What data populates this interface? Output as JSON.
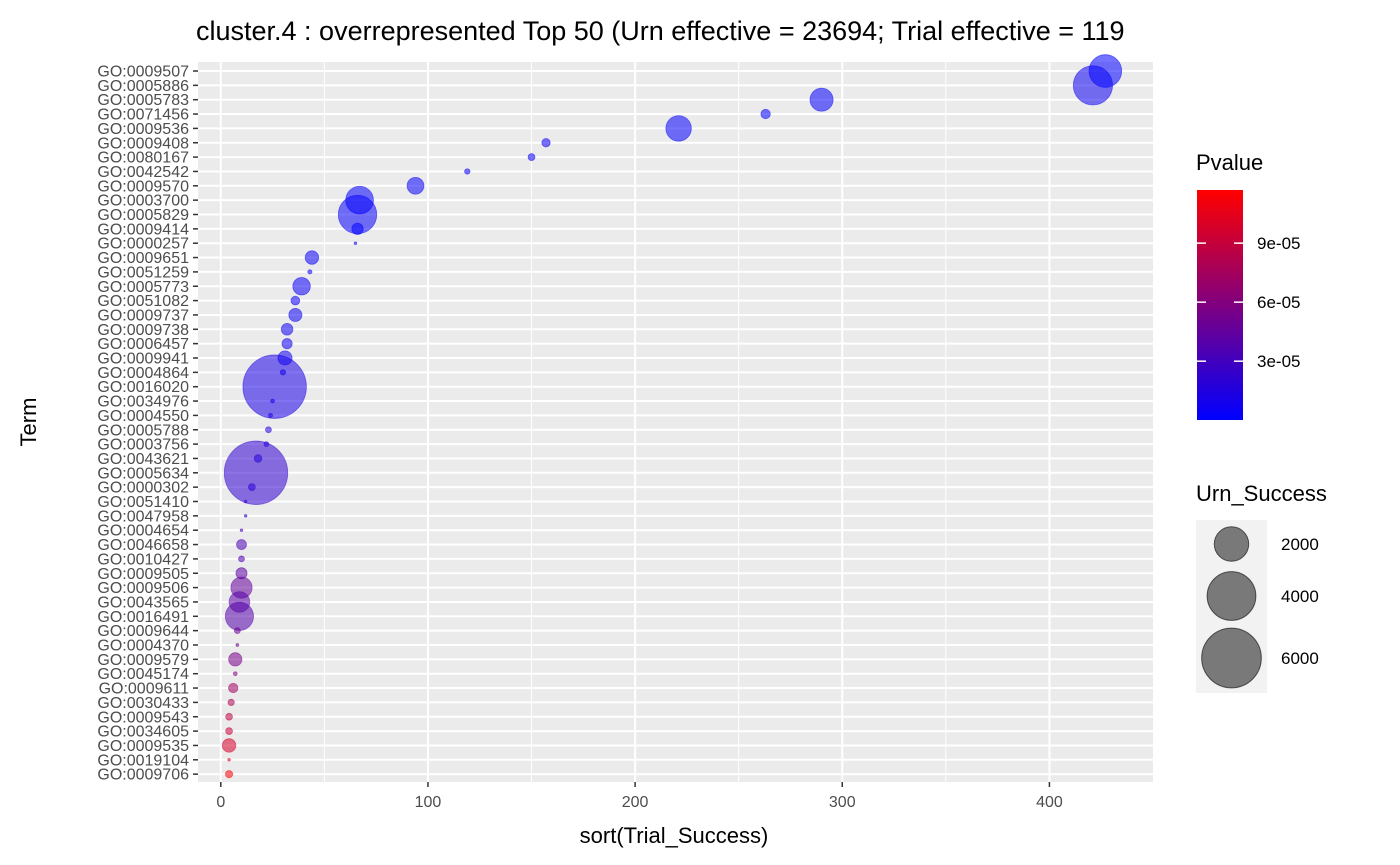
{
  "chart_data": {
    "type": "scatter",
    "title": "cluster.4 : overrepresented Top 50 (Urn effective = 23694; Trial effective = 119",
    "xlabel": "sort(Trial_Success)",
    "ylabel": "Term",
    "xlim": [
      -11,
      450
    ],
    "xticks": [
      0,
      100,
      200,
      300,
      400
    ],
    "xtick_labels": [
      "0",
      "100",
      "200",
      "300",
      "400"
    ],
    "grid": true,
    "colors": {
      "panel": "#ebebeb",
      "grid": "#ffffff",
      "low": "#0000ff",
      "high": "#ff0000",
      "point_alpha": 0.55
    },
    "terms": [
      "GO:0009507",
      "GO:0005886",
      "GO:0005783",
      "GO:0071456",
      "GO:0009536",
      "GO:0009408",
      "GO:0080167",
      "GO:0042542",
      "GO:0009570",
      "GO:0003700",
      "GO:0005829",
      "GO:0009414",
      "GO:0000257",
      "GO:0009651",
      "GO:0051259",
      "GO:0005773",
      "GO:0051082",
      "GO:0009737",
      "GO:0009738",
      "GO:0006457",
      "GO:0009941",
      "GO:0004864",
      "GO:0016020",
      "GO:0034976",
      "GO:0004550",
      "GO:0005788",
      "GO:0003756",
      "GO:0043621",
      "GO:0005634",
      "GO:0000302",
      "GO:0051410",
      "GO:0047958",
      "GO:0004654",
      "GO:0046658",
      "GO:0010427",
      "GO:0009505",
      "GO:0009506",
      "GO:0043565",
      "GO:0016491",
      "GO:0009644",
      "GO:0004370",
      "GO:0009579",
      "GO:0045174",
      "GO:0009611",
      "GO:0030433",
      "GO:0009543",
      "GO:0034605",
      "GO:0009535",
      "GO:0019104",
      "GO:0009706"
    ],
    "points": [
      {
        "term": "GO:0009507",
        "x": 427,
        "size": 1800,
        "pvalue": 1e-07
      },
      {
        "term": "GO:0005886",
        "x": 421,
        "size": 2600,
        "pvalue": 6e-06
      },
      {
        "term": "GO:0005783",
        "x": 290,
        "size": 900,
        "pvalue": 2e-06
      },
      {
        "term": "GO:0071456",
        "x": 263,
        "size": 150,
        "pvalue": 3e-06
      },
      {
        "term": "GO:0009536",
        "x": 221,
        "size": 1100,
        "pvalue": 2e-06
      },
      {
        "term": "GO:0009408",
        "x": 157,
        "size": 120,
        "pvalue": 4e-06
      },
      {
        "term": "GO:0080167",
        "x": 150,
        "size": 80,
        "pvalue": 3e-06
      },
      {
        "term": "GO:0042542",
        "x": 119,
        "size": 50,
        "pvalue": 4e-06
      },
      {
        "term": "GO:0009570",
        "x": 94,
        "size": 480,
        "pvalue": 3e-06
      },
      {
        "term": "GO:0003700",
        "x": 67,
        "size": 1300,
        "pvalue": 2e-06
      },
      {
        "term": "GO:0005829",
        "x": 66,
        "size": 2500,
        "pvalue": 3e-06
      },
      {
        "term": "GO:0009414",
        "x": 66,
        "size": 220,
        "pvalue": 1e-06
      },
      {
        "term": "GO:0000257",
        "x": 65,
        "size": 12,
        "pvalue": 4e-06
      },
      {
        "term": "GO:0009651",
        "x": 44,
        "size": 310,
        "pvalue": 4e-06
      },
      {
        "term": "GO:0051259",
        "x": 43,
        "size": 30,
        "pvalue": 4e-06
      },
      {
        "term": "GO:0005773",
        "x": 39,
        "size": 520,
        "pvalue": 4e-06
      },
      {
        "term": "GO:0051082",
        "x": 36,
        "size": 130,
        "pvalue": 5e-06
      },
      {
        "term": "GO:0009737",
        "x": 36,
        "size": 290,
        "pvalue": 5e-06
      },
      {
        "term": "GO:0009738",
        "x": 32,
        "size": 230,
        "pvalue": 7e-06
      },
      {
        "term": "GO:0006457",
        "x": 32,
        "size": 180,
        "pvalue": 7e-06
      },
      {
        "term": "GO:0009941",
        "x": 31,
        "size": 340,
        "pvalue": 8e-06
      },
      {
        "term": "GO:0004864",
        "x": 30,
        "size": 50,
        "pvalue": 9e-06
      },
      {
        "term": "GO:0016020",
        "x": 26,
        "size": 6800,
        "pvalue": 1.2e-05
      },
      {
        "term": "GO:0034976",
        "x": 25,
        "size": 25,
        "pvalue": 1.2e-05
      },
      {
        "term": "GO:0004550",
        "x": 24,
        "size": 28,
        "pvalue": 1.4e-05
      },
      {
        "term": "GO:0005788",
        "x": 23,
        "size": 60,
        "pvalue": 1.5e-05
      },
      {
        "term": "GO:0003756",
        "x": 22,
        "size": 40,
        "pvalue": 1.6e-05
      },
      {
        "term": "GO:0043621",
        "x": 18,
        "size": 100,
        "pvalue": 1.6e-05
      },
      {
        "term": "GO:0005634",
        "x": 17,
        "size": 6800,
        "pvalue": 2.2e-05
      },
      {
        "term": "GO:0000302",
        "x": 15,
        "size": 80,
        "pvalue": 1.8e-05
      },
      {
        "term": "GO:0051410",
        "x": 12,
        "size": 5,
        "pvalue": 2e-05
      },
      {
        "term": "GO:0047958",
        "x": 12,
        "size": 5,
        "pvalue": 2.2e-05
      },
      {
        "term": "GO:0004654",
        "x": 10,
        "size": 9,
        "pvalue": 3e-05
      },
      {
        "term": "GO:0046658",
        "x": 10,
        "size": 170,
        "pvalue": 3.3e-05
      },
      {
        "term": "GO:0010427",
        "x": 10,
        "size": 60,
        "pvalue": 3.6e-05
      },
      {
        "term": "GO:0009505",
        "x": 10,
        "size": 210,
        "pvalue": 4.2e-05
      },
      {
        "term": "GO:0009506",
        "x": 10,
        "size": 760,
        "pvalue": 4.6e-05
      },
      {
        "term": "GO:0043565",
        "x": 9,
        "size": 720,
        "pvalue": 4e-05
      },
      {
        "term": "GO:0016491",
        "x": 9,
        "size": 1350,
        "pvalue": 3.8e-05
      },
      {
        "term": "GO:0009644",
        "x": 8,
        "size": 60,
        "pvalue": 5e-05
      },
      {
        "term": "GO:0004370",
        "x": 8,
        "size": 15,
        "pvalue": 5.2e-05
      },
      {
        "term": "GO:0009579",
        "x": 7,
        "size": 300,
        "pvalue": 5.5e-05
      },
      {
        "term": "GO:0045174",
        "x": 7,
        "size": 25,
        "pvalue": 6e-05
      },
      {
        "term": "GO:0009611",
        "x": 6,
        "size": 150,
        "pvalue": 7.2e-05
      },
      {
        "term": "GO:0030433",
        "x": 5,
        "size": 70,
        "pvalue": 8e-05
      },
      {
        "term": "GO:0009543",
        "x": 4,
        "size": 80,
        "pvalue": 8.6e-05
      },
      {
        "term": "GO:0034605",
        "x": 4,
        "size": 80,
        "pvalue": 9.2e-05
      },
      {
        "term": "GO:0009535",
        "x": 4,
        "size": 310,
        "pvalue": 9.8e-05
      },
      {
        "term": "GO:0019104",
        "x": 4,
        "size": 12,
        "pvalue": 0.000105
      },
      {
        "term": "GO:0009706",
        "x": 4,
        "size": 90,
        "pvalue": 0.000115
      }
    ],
    "legend_color": {
      "title": "Pvalue",
      "range": [
        1e-07,
        0.000117
      ],
      "breaks": [
        3e-05,
        6e-05,
        9e-05
      ],
      "labels": [
        "3e-05",
        "6e-05",
        "9e-05"
      ],
      "placement": "right"
    },
    "legend_size": {
      "title": "Urn_Success",
      "breaks": [
        2000,
        4000,
        6000
      ],
      "labels": [
        "2000",
        "4000",
        "6000"
      ],
      "placement": "right"
    }
  }
}
